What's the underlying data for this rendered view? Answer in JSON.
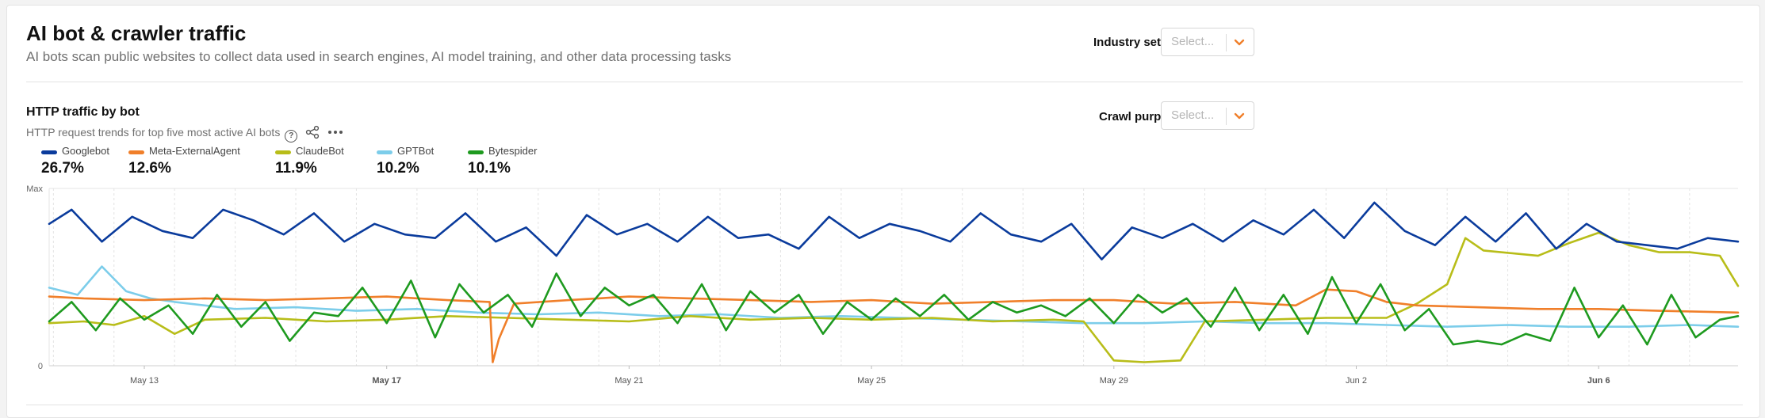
{
  "header": {
    "title": "AI bot & crawler traffic",
    "description": "AI bots scan public websites to collect data used in search engines, AI model training, and other data processing tasks",
    "industry_label": "Industry set",
    "industry_placeholder": "Select..."
  },
  "section": {
    "title": "HTTP traffic by bot",
    "description": "HTTP request trends for top five most active AI bots",
    "crawl_label": "Crawl purpose",
    "crawl_placeholder": "Select..."
  },
  "colors": {
    "Googlebot": "#0a3b9c",
    "Meta-ExternalAgent": "#f07f2a",
    "ClaudeBot": "#b8bd19",
    "GPTBot": "#7ccdea",
    "Bytespider": "#1e9a1f"
  },
  "chart_data": {
    "type": "line",
    "y_axis_labels": [
      "Max",
      "0"
    ],
    "x_ticks": [
      {
        "label": "May 13",
        "pos": 2.5,
        "bold": false
      },
      {
        "label": "May 17",
        "pos": 6.5,
        "bold": true
      },
      {
        "label": "May 21",
        "pos": 10.5,
        "bold": false
      },
      {
        "label": "May 25",
        "pos": 14.5,
        "bold": false
      },
      {
        "label": "May 29",
        "pos": 18.5,
        "bold": false
      },
      {
        "label": "Jun 2",
        "pos": 22.5,
        "bold": false
      },
      {
        "label": "Jun 6",
        "pos": 26.5,
        "bold": true
      }
    ],
    "x_range": [
      0.93,
      28.8
    ],
    "ylim": [
      0,
      100
    ],
    "legend": [
      {
        "name": "Googlebot",
        "share": "26.7%"
      },
      {
        "name": "Meta-ExternalAgent",
        "share": "12.6%"
      },
      {
        "name": "ClaudeBot",
        "share": "11.9%"
      },
      {
        "name": "GPTBot",
        "share": "10.2%"
      },
      {
        "name": "Bytespider",
        "share": "10.1%"
      }
    ],
    "series": [
      {
        "name": "Googlebot",
        "x": [
          0.93,
          1.3,
          1.8,
          2.3,
          2.8,
          3.3,
          3.8,
          4.3,
          4.8,
          5.3,
          5.8,
          6.3,
          6.8,
          7.3,
          7.8,
          8.3,
          8.8,
          9.3,
          9.8,
          10.3,
          10.8,
          11.3,
          11.8,
          12.3,
          12.8,
          13.3,
          13.8,
          14.3,
          14.8,
          15.3,
          15.8,
          16.3,
          16.8,
          17.3,
          17.8,
          18.3,
          18.8,
          19.3,
          19.8,
          20.3,
          20.8,
          21.3,
          21.8,
          22.3,
          22.8,
          23.3,
          23.8,
          24.3,
          24.8,
          25.3,
          25.8,
          26.3,
          26.8,
          27.3,
          27.8,
          28.3,
          28.8
        ],
        "values": [
          80,
          88,
          70,
          84,
          76,
          72,
          88,
          82,
          74,
          86,
          70,
          80,
          74,
          72,
          86,
          70,
          78,
          62,
          85,
          74,
          80,
          70,
          84,
          72,
          74,
          66,
          84,
          72,
          80,
          76,
          70,
          86,
          74,
          70,
          80,
          60,
          78,
          72,
          80,
          70,
          82,
          74,
          88,
          72,
          92,
          76,
          68,
          84,
          70,
          86,
          66,
          80,
          70,
          68,
          66,
          72,
          70
        ]
      },
      {
        "name": "Meta-ExternalAgent",
        "x": [
          0.93,
          1.5,
          2.5,
          3.5,
          4.5,
          5.5,
          6.5,
          7.5,
          8.2,
          8.25,
          8.35,
          8.6,
          9.5,
          10.5,
          11.5,
          12.5,
          13.5,
          14.5,
          15.5,
          16.5,
          17.5,
          18.5,
          19.5,
          20.5,
          21.5,
          22.0,
          22.5,
          23.0,
          23.5,
          24.5,
          25.5,
          26.5,
          27.5,
          28.8
        ],
        "values": [
          39,
          38,
          37,
          38,
          37,
          38,
          39,
          37,
          36,
          2,
          15,
          35,
          37,
          39,
          38,
          37,
          36,
          37,
          35,
          36,
          37,
          37,
          35,
          36,
          34,
          43,
          42,
          36,
          34,
          33,
          32,
          32,
          31,
          30
        ]
      },
      {
        "name": "ClaudeBot",
        "x": [
          0.93,
          1.5,
          2.0,
          2.5,
          3.0,
          3.5,
          4.5,
          5.5,
          6.5,
          7.5,
          8.5,
          9.5,
          10.5,
          11.5,
          12.5,
          13.5,
          14.5,
          15.5,
          16.5,
          17.5,
          18.0,
          18.5,
          19.0,
          19.6,
          20.0,
          21.0,
          22.0,
          23.0,
          23.5,
          24.0,
          24.3,
          24.6,
          25.5,
          26.0,
          26.5,
          27.0,
          27.5,
          28.0,
          28.5,
          28.8
        ],
        "values": [
          24,
          25,
          23,
          28,
          18,
          26,
          27,
          25,
          26,
          28,
          27,
          26,
          25,
          28,
          26,
          27,
          26,
          27,
          25,
          26,
          25,
          3,
          2,
          3,
          25,
          26,
          27,
          27,
          35,
          46,
          72,
          65,
          62,
          69,
          75,
          68,
          64,
          64,
          62,
          45
        ]
      },
      {
        "name": "GPTBot",
        "x": [
          0.93,
          1.4,
          1.8,
          2.2,
          2.6,
          3.0,
          4.0,
          5.0,
          6.0,
          7.0,
          8.0,
          9.0,
          10.0,
          11.0,
          12.0,
          13.0,
          14.0,
          15.0,
          16.0,
          17.0,
          18.0,
          19.0,
          20.0,
          21.0,
          22.0,
          23.0,
          24.0,
          25.0,
          26.0,
          27.0,
          28.0,
          28.8
        ],
        "values": [
          44,
          40,
          56,
          42,
          38,
          36,
          32,
          33,
          31,
          32,
          30,
          29,
          30,
          28,
          29,
          27,
          28,
          27,
          26,
          25,
          24,
          24,
          25,
          24,
          24,
          23,
          22,
          23,
          22,
          22,
          23,
          22
        ]
      },
      {
        "name": "Bytespider",
        "x": [
          0.93,
          1.3,
          1.7,
          2.1,
          2.5,
          2.9,
          3.3,
          3.7,
          4.1,
          4.5,
          4.9,
          5.3,
          5.7,
          6.1,
          6.5,
          6.9,
          7.3,
          7.7,
          8.1,
          8.5,
          8.9,
          9.3,
          9.7,
          10.1,
          10.5,
          10.9,
          11.3,
          11.7,
          12.1,
          12.5,
          12.9,
          13.3,
          13.7,
          14.1,
          14.5,
          14.9,
          15.3,
          15.7,
          16.1,
          16.5,
          16.9,
          17.3,
          17.7,
          18.1,
          18.5,
          18.9,
          19.3,
          19.7,
          20.1,
          20.5,
          20.9,
          21.3,
          21.7,
          22.1,
          22.5,
          22.9,
          23.3,
          23.7,
          24.1,
          24.5,
          24.9,
          25.3,
          25.7,
          26.1,
          26.5,
          26.9,
          27.3,
          27.7,
          28.1,
          28.5,
          28.8
        ],
        "values": [
          25,
          36,
          20,
          38,
          26,
          34,
          18,
          40,
          22,
          36,
          14,
          30,
          28,
          44,
          24,
          48,
          16,
          46,
          30,
          40,
          22,
          52,
          28,
          44,
          34,
          40,
          24,
          46,
          20,
          42,
          30,
          40,
          18,
          36,
          26,
          38,
          28,
          40,
          26,
          36,
          30,
          34,
          28,
          38,
          24,
          40,
          30,
          38,
          22,
          44,
          20,
          40,
          18,
          50,
          24,
          46,
          20,
          32,
          12,
          14,
          12,
          18,
          14,
          44,
          16,
          34,
          12,
          40,
          16,
          26,
          28
        ]
      }
    ]
  }
}
